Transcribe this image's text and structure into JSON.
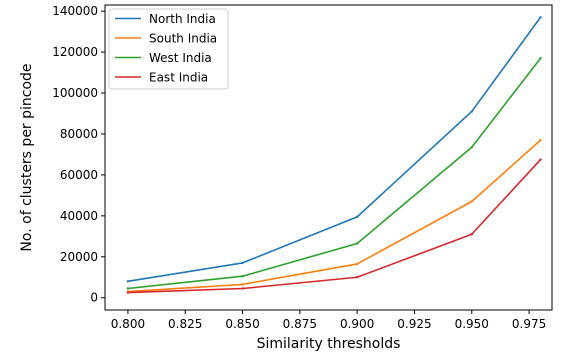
{
  "chart_data": {
    "type": "line",
    "xlabel": "Similarity thresholds",
    "ylabel": "No. of clusters per pincode",
    "x": [
      0.8,
      0.85,
      0.9,
      0.95,
      0.98
    ],
    "xlim": [
      0.79,
      0.985
    ],
    "ylim": [
      -6000,
      143000
    ],
    "xticks": [
      0.8,
      0.825,
      0.85,
      0.875,
      0.9,
      0.925,
      0.95,
      0.975
    ],
    "xtick_labels": [
      "0.800",
      "0.825",
      "0.850",
      "0.875",
      "0.900",
      "0.925",
      "0.950",
      "0.975"
    ],
    "yticks": [
      0,
      20000,
      40000,
      60000,
      80000,
      100000,
      120000,
      140000
    ],
    "ytick_labels": [
      "0",
      "20000",
      "40000",
      "60000",
      "80000",
      "100000",
      "120000",
      "140000"
    ],
    "grid": false,
    "legend_position": "top-left",
    "series": [
      {
        "name": "North India",
        "color": "#1f77b4",
        "values": [
          8000,
          17000,
          39500,
          91000,
          137000
        ]
      },
      {
        "name": "South India",
        "color": "#ff7f0e",
        "values": [
          3000,
          6500,
          16500,
          47000,
          77000
        ]
      },
      {
        "name": "West India",
        "color": "#2ca02c",
        "values": [
          4500,
          10500,
          26500,
          73500,
          117000
        ]
      },
      {
        "name": "East India",
        "color": "#d62728",
        "values": [
          2500,
          4500,
          10000,
          31000,
          67500
        ]
      }
    ]
  }
}
